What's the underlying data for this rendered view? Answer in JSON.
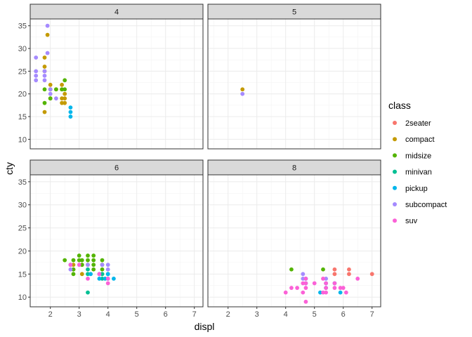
{
  "chart_data": {
    "type": "scatter",
    "facet_var": "cyl",
    "facets": [
      "4",
      "5",
      "6",
      "8"
    ],
    "xlabel": "displ",
    "ylabel": "cty",
    "xlim": [
      1.3,
      7.3
    ],
    "ylim": [
      7.9,
      36.5
    ],
    "xticks": [
      2,
      3,
      4,
      5,
      6,
      7
    ],
    "yticks": [
      10,
      15,
      20,
      25,
      30,
      35
    ],
    "grid": true,
    "legend": {
      "title": "class",
      "position": "right",
      "entries": [
        {
          "name": "2seater",
          "color": "#F8766D"
        },
        {
          "name": "compact",
          "color": "#C49A00"
        },
        {
          "name": "midsize",
          "color": "#53B400"
        },
        {
          "name": "minivan",
          "color": "#00C094"
        },
        {
          "name": "pickup",
          "color": "#00B6EB"
        },
        {
          "name": "subcompact",
          "color": "#A58AFF"
        },
        {
          "name": "suv",
          "color": "#FB61D7"
        }
      ]
    },
    "series": [
      {
        "name": "2seater",
        "points": [
          {
            "facet": "8",
            "x": 5.7,
            "y": 16
          },
          {
            "facet": "8",
            "x": 5.7,
            "y": 15
          },
          {
            "facet": "8",
            "x": 6.2,
            "y": 16
          },
          {
            "facet": "8",
            "x": 6.2,
            "y": 15
          },
          {
            "facet": "8",
            "x": 7.0,
            "y": 15
          }
        ]
      },
      {
        "name": "compact",
        "points": [
          {
            "facet": "4",
            "x": 1.8,
            "y": 28
          },
          {
            "facet": "4",
            "x": 1.8,
            "y": 26
          },
          {
            "facet": "4",
            "x": 1.8,
            "y": 25
          },
          {
            "facet": "4",
            "x": 1.8,
            "y": 16
          },
          {
            "facet": "4",
            "x": 1.9,
            "y": 33
          },
          {
            "facet": "4",
            "x": 2.0,
            "y": 22
          },
          {
            "facet": "4",
            "x": 2.0,
            "y": 21
          },
          {
            "facet": "4",
            "x": 2.0,
            "y": 19
          },
          {
            "facet": "4",
            "x": 2.2,
            "y": 21
          },
          {
            "facet": "4",
            "x": 2.4,
            "y": 22
          },
          {
            "facet": "4",
            "x": 2.4,
            "y": 21
          },
          {
            "facet": "4",
            "x": 2.4,
            "y": 19
          },
          {
            "facet": "4",
            "x": 2.4,
            "y": 18
          },
          {
            "facet": "4",
            "x": 2.5,
            "y": 20
          },
          {
            "facet": "4",
            "x": 2.5,
            "y": 19
          },
          {
            "facet": "4",
            "x": 2.5,
            "y": 18
          },
          {
            "facet": "5",
            "x": 2.5,
            "y": 21
          },
          {
            "facet": "6",
            "x": 2.8,
            "y": 16
          },
          {
            "facet": "6",
            "x": 2.8,
            "y": 17
          },
          {
            "facet": "6",
            "x": 3.1,
            "y": 15
          },
          {
            "facet": "6",
            "x": 3.1,
            "y": 17
          }
        ]
      },
      {
        "name": "midsize",
        "points": [
          {
            "facet": "4",
            "x": 1.8,
            "y": 21
          },
          {
            "facet": "4",
            "x": 1.8,
            "y": 18
          },
          {
            "facet": "4",
            "x": 2.0,
            "y": 21
          },
          {
            "facet": "4",
            "x": 2.0,
            "y": 19
          },
          {
            "facet": "4",
            "x": 2.2,
            "y": 21
          },
          {
            "facet": "4",
            "x": 2.4,
            "y": 21
          },
          {
            "facet": "4",
            "x": 2.5,
            "y": 23
          },
          {
            "facet": "4",
            "x": 2.5,
            "y": 21
          },
          {
            "facet": "6",
            "x": 2.5,
            "y": 18
          },
          {
            "facet": "6",
            "x": 2.7,
            "y": 17
          },
          {
            "facet": "6",
            "x": 2.8,
            "y": 18
          },
          {
            "facet": "6",
            "x": 2.8,
            "y": 16
          },
          {
            "facet": "6",
            "x": 2.8,
            "y": 15
          },
          {
            "facet": "6",
            "x": 3.0,
            "y": 18
          },
          {
            "facet": "6",
            "x": 3.0,
            "y": 19
          },
          {
            "facet": "6",
            "x": 3.1,
            "y": 18
          },
          {
            "facet": "6",
            "x": 3.1,
            "y": 17
          },
          {
            "facet": "6",
            "x": 3.3,
            "y": 19
          },
          {
            "facet": "6",
            "x": 3.3,
            "y": 18
          },
          {
            "facet": "6",
            "x": 3.3,
            "y": 17
          },
          {
            "facet": "6",
            "x": 3.5,
            "y": 19
          },
          {
            "facet": "6",
            "x": 3.5,
            "y": 18
          },
          {
            "facet": "6",
            "x": 3.5,
            "y": 17
          },
          {
            "facet": "6",
            "x": 3.5,
            "y": 16
          },
          {
            "facet": "6",
            "x": 3.8,
            "y": 18
          },
          {
            "facet": "6",
            "x": 3.8,
            "y": 17
          },
          {
            "facet": "6",
            "x": 3.8,
            "y": 16
          },
          {
            "facet": "6",
            "x": 3.8,
            "y": 15
          },
          {
            "facet": "8",
            "x": 4.2,
            "y": 16
          },
          {
            "facet": "8",
            "x": 5.3,
            "y": 16
          }
        ]
      },
      {
        "name": "minivan",
        "points": [
          {
            "facet": "6",
            "x": 3.3,
            "y": 11
          },
          {
            "facet": "6",
            "x": 3.3,
            "y": 15
          },
          {
            "facet": "6",
            "x": 3.3,
            "y": 16
          },
          {
            "facet": "6",
            "x": 3.8,
            "y": 15
          },
          {
            "facet": "6",
            "x": 3.8,
            "y": 14
          },
          {
            "facet": "6",
            "x": 4.0,
            "y": 15
          }
        ]
      },
      {
        "name": "pickup",
        "points": [
          {
            "facet": "4",
            "x": 2.7,
            "y": 17
          },
          {
            "facet": "4",
            "x": 2.7,
            "y": 16
          },
          {
            "facet": "4",
            "x": 2.7,
            "y": 15
          },
          {
            "facet": "6",
            "x": 3.4,
            "y": 15
          },
          {
            "facet": "6",
            "x": 3.7,
            "y": 15
          },
          {
            "facet": "6",
            "x": 3.7,
            "y": 14
          },
          {
            "facet": "6",
            "x": 3.9,
            "y": 14
          },
          {
            "facet": "6",
            "x": 4.0,
            "y": 14
          },
          {
            "facet": "6",
            "x": 4.0,
            "y": 15
          },
          {
            "facet": "6",
            "x": 4.2,
            "y": 14
          },
          {
            "facet": "8",
            "x": 4.7,
            "y": 14
          },
          {
            "facet": "8",
            "x": 4.7,
            "y": 13
          },
          {
            "facet": "8",
            "x": 5.2,
            "y": 11
          },
          {
            "facet": "8",
            "x": 5.4,
            "y": 13
          },
          {
            "facet": "8",
            "x": 5.4,
            "y": 12
          },
          {
            "facet": "8",
            "x": 5.7,
            "y": 13
          },
          {
            "facet": "8",
            "x": 5.9,
            "y": 11
          }
        ]
      },
      {
        "name": "subcompact",
        "points": [
          {
            "facet": "4",
            "x": 1.5,
            "y": 28
          },
          {
            "facet": "4",
            "x": 1.5,
            "y": 25
          },
          {
            "facet": "4",
            "x": 1.5,
            "y": 24
          },
          {
            "facet": "4",
            "x": 1.5,
            "y": 23
          },
          {
            "facet": "4",
            "x": 1.8,
            "y": 25
          },
          {
            "facet": "4",
            "x": 1.8,
            "y": 24
          },
          {
            "facet": "4",
            "x": 1.8,
            "y": 23
          },
          {
            "facet": "4",
            "x": 1.9,
            "y": 35
          },
          {
            "facet": "4",
            "x": 1.9,
            "y": 29
          },
          {
            "facet": "4",
            "x": 2.0,
            "y": 21
          },
          {
            "facet": "4",
            "x": 2.0,
            "y": 20
          },
          {
            "facet": "4",
            "x": 2.2,
            "y": 19
          },
          {
            "facet": "5",
            "x": 2.5,
            "y": 20
          },
          {
            "facet": "6",
            "x": 2.7,
            "y": 17
          },
          {
            "facet": "6",
            "x": 2.7,
            "y": 16
          },
          {
            "facet": "6",
            "x": 3.3,
            "y": 17
          },
          {
            "facet": "6",
            "x": 3.8,
            "y": 17
          },
          {
            "facet": "6",
            "x": 4.0,
            "y": 17
          },
          {
            "facet": "6",
            "x": 4.0,
            "y": 16
          },
          {
            "facet": "8",
            "x": 4.6,
            "y": 15
          },
          {
            "facet": "8",
            "x": 4.6,
            "y": 14
          },
          {
            "facet": "8",
            "x": 5.4,
            "y": 14
          }
        ]
      },
      {
        "name": "suv",
        "points": [
          {
            "facet": "6",
            "x": 2.7,
            "y": 17
          },
          {
            "facet": "6",
            "x": 3.0,
            "y": 17
          },
          {
            "facet": "6",
            "x": 3.3,
            "y": 14
          },
          {
            "facet": "6",
            "x": 3.7,
            "y": 15
          },
          {
            "facet": "6",
            "x": 4.0,
            "y": 13
          },
          {
            "facet": "6",
            "x": 4.0,
            "y": 14
          },
          {
            "facet": "8",
            "x": 4.0,
            "y": 11
          },
          {
            "facet": "8",
            "x": 4.2,
            "y": 12
          },
          {
            "facet": "8",
            "x": 4.4,
            "y": 12
          },
          {
            "facet": "8",
            "x": 4.6,
            "y": 11
          },
          {
            "facet": "8",
            "x": 4.6,
            "y": 13
          },
          {
            "facet": "8",
            "x": 4.7,
            "y": 9
          },
          {
            "facet": "8",
            "x": 4.7,
            "y": 12
          },
          {
            "facet": "8",
            "x": 4.7,
            "y": 13
          },
          {
            "facet": "8",
            "x": 4.7,
            "y": 14
          },
          {
            "facet": "8",
            "x": 5.0,
            "y": 13
          },
          {
            "facet": "8",
            "x": 5.3,
            "y": 11
          },
          {
            "facet": "8",
            "x": 5.3,
            "y": 14
          },
          {
            "facet": "8",
            "x": 5.4,
            "y": 11
          },
          {
            "facet": "8",
            "x": 5.4,
            "y": 12
          },
          {
            "facet": "8",
            "x": 5.4,
            "y": 13
          },
          {
            "facet": "8",
            "x": 5.7,
            "y": 12
          },
          {
            "facet": "8",
            "x": 5.7,
            "y": 13
          },
          {
            "facet": "8",
            "x": 5.9,
            "y": 12
          },
          {
            "facet": "8",
            "x": 6.0,
            "y": 12
          },
          {
            "facet": "8",
            "x": 6.1,
            "y": 11
          },
          {
            "facet": "8",
            "x": 6.5,
            "y": 14
          }
        ]
      }
    ]
  }
}
